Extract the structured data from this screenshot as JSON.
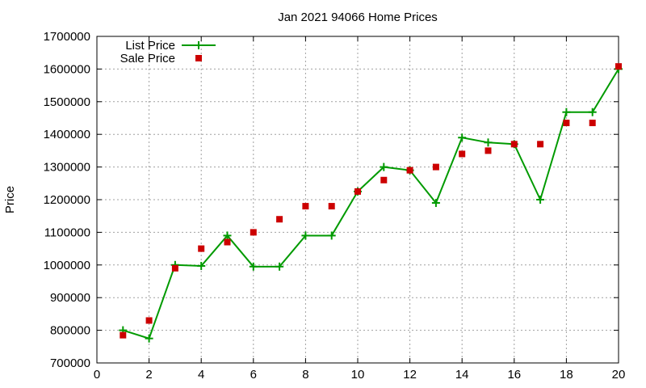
{
  "chart_data": {
    "type": "line",
    "title": "Jan 2021 94066 Home Prices",
    "xlabel": "",
    "ylabel": "Price",
    "xlim": [
      0,
      20
    ],
    "ylim": [
      700000,
      1700000
    ],
    "xticks": [
      "0",
      "2",
      "4",
      "6",
      "8",
      "10",
      "12",
      "14",
      "16",
      "18",
      "20"
    ],
    "yticks": [
      "700000",
      "800000",
      "900000",
      "1000000",
      "1100000",
      "1200000",
      "1300000",
      "1400000",
      "1500000",
      "1600000",
      "1700000"
    ],
    "grid": true,
    "legend_position": "top-left",
    "series": [
      {
        "name": "List Price",
        "style": "line with plus markers",
        "color": "#009a00",
        "x": [
          1,
          2,
          3,
          4,
          5,
          6,
          7,
          8,
          9,
          10,
          11,
          12,
          13,
          14,
          15,
          16,
          17,
          18,
          19,
          20
        ],
        "y": [
          800000,
          775000,
          1000000,
          997000,
          1090000,
          995000,
          995000,
          1090000,
          1090000,
          1225000,
          1300000,
          1290000,
          1190000,
          1390000,
          1375000,
          1370000,
          1200000,
          1468000,
          1468000,
          1600000
        ]
      },
      {
        "name": "Sale Price",
        "style": "square markers",
        "color": "#cc0000",
        "x": [
          1,
          2,
          3,
          4,
          5,
          6,
          7,
          8,
          9,
          10,
          11,
          12,
          13,
          14,
          15,
          16,
          17,
          18,
          19,
          20
        ],
        "y": [
          785000,
          830000,
          990000,
          1050000,
          1070000,
          1100000,
          1140000,
          1180000,
          1180000,
          1225000,
          1260000,
          1290000,
          1300000,
          1340000,
          1350000,
          1370000,
          1370000,
          1435000,
          1435000,
          1608000
        ]
      }
    ]
  }
}
